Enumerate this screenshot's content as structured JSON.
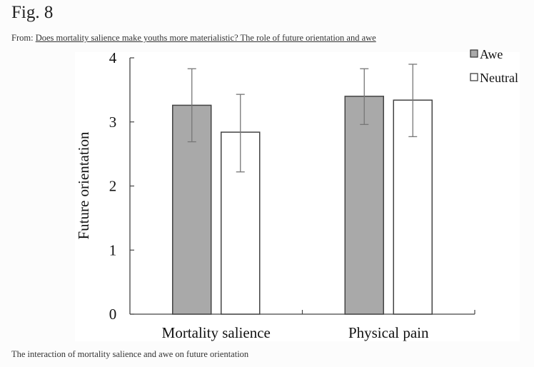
{
  "figure": {
    "title": "Fig. 8",
    "from_prefix": "From: ",
    "from_link": "Does mortality salience make youths more materialistic? The role of future orientation and awe",
    "caption": "The interaction of mortality salience and awe on future orientation"
  },
  "chart_data": {
    "type": "bar",
    "title": "",
    "xlabel": "",
    "ylabel": "Future orientation",
    "ylim": [
      0,
      4
    ],
    "yticks": [
      0,
      1,
      2,
      3,
      4
    ],
    "categories": [
      "Mortality salience",
      "Physical pain"
    ],
    "series": [
      {
        "name": "Awe",
        "color": "#a9a9a9",
        "values": [
          3.26,
          3.4
        ],
        "error_low": [
          2.69,
          2.96
        ],
        "error_high": [
          3.83,
          3.83
        ]
      },
      {
        "name": "Neutral",
        "color": "#ffffff",
        "values": [
          2.84,
          3.34
        ],
        "error_low": [
          2.22,
          2.77
        ],
        "error_high": [
          3.43,
          3.9
        ]
      }
    ],
    "legend": {
      "position": "top-right",
      "entries": [
        "Awe",
        "Neutral"
      ]
    },
    "grid": false
  }
}
